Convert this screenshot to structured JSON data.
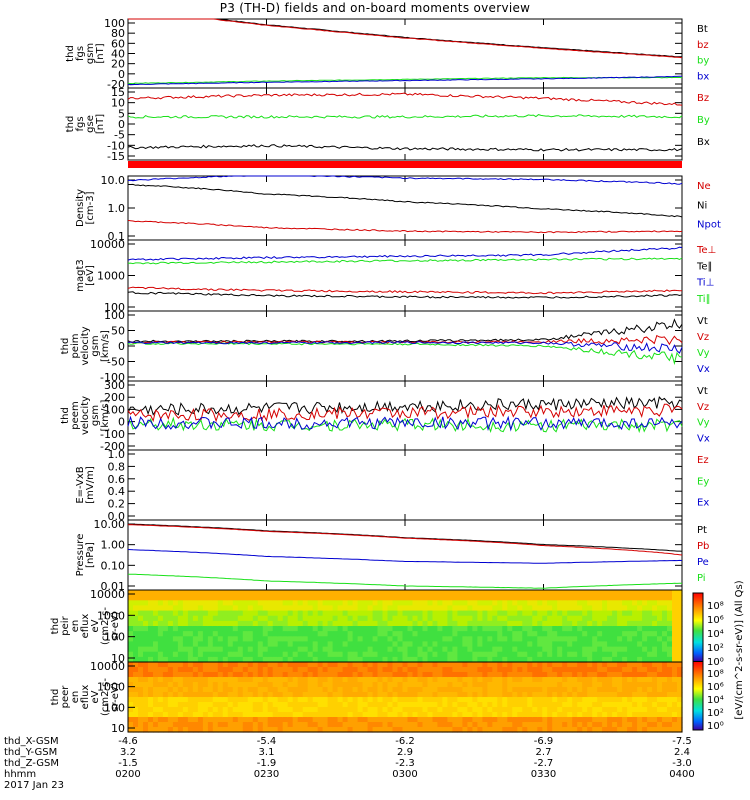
{
  "title": "P3 (TH-D) fields and on-board moments overview",
  "colors": {
    "black": "#000000",
    "red": "#d40000",
    "green": "#19e019",
    "blue": "#0000d0"
  },
  "chart_data": [
    {
      "type": "line",
      "panel": "fgs_gsm",
      "ylabel": [
        "thd",
        "fgs",
        "gsm",
        "[nT]"
      ],
      "yticks": [
        "100",
        "80",
        "60",
        "40",
        "20",
        "0",
        "-20"
      ],
      "ylim": [
        -20,
        100
      ],
      "x": [
        "0200",
        "0230",
        "0300",
        "0330",
        "0400"
      ],
      "series": [
        {
          "name": "Bt",
          "color": "black",
          "values": [
            118,
            90,
            68,
            50,
            34
          ]
        },
        {
          "name": "bz",
          "color": "red",
          "values": [
            117,
            89,
            67,
            49,
            33
          ]
        },
        {
          "name": "by",
          "color": "green",
          "values": [
            -12,
            -8,
            -5,
            -2,
            -2
          ]
        },
        {
          "name": "bx",
          "color": "blue",
          "values": [
            -14,
            -10,
            -7,
            -4,
            0
          ]
        }
      ]
    },
    {
      "type": "line",
      "panel": "fgs_gse",
      "ylabel": [
        "thd",
        "fgs",
        "gse",
        "[nT]"
      ],
      "yticks": [
        "15",
        "10",
        "5",
        "0",
        "-5",
        "-10",
        "-15"
      ],
      "ylim": [
        -20,
        15
      ],
      "series": [
        {
          "name": "Bz",
          "color": "red",
          "values": [
            10,
            11.5,
            12,
            10,
            7
          ]
        },
        {
          "name": "By",
          "color": "green",
          "values": [
            1,
            1,
            1,
            1.5,
            1
          ]
        },
        {
          "name": "Bx",
          "color": "black",
          "values": [
            -14,
            -13,
            -14.5,
            -15,
            -15
          ]
        }
      ]
    },
    {
      "type": "line",
      "panel": "density",
      "ylabel": [
        "Density",
        "[cm-3]"
      ],
      "log": true,
      "yticks": [
        "10.0",
        "1.0",
        "0.1"
      ],
      "ylim": [
        0.1,
        30
      ],
      "series": [
        {
          "name": "Ne",
          "color": "red",
          "values": [
            0.55,
            0.3,
            0.22,
            0.2,
            0.22
          ]
        },
        {
          "name": "Ni",
          "color": "black",
          "values": [
            14,
            6,
            3,
            1.6,
            0.8
          ]
        },
        {
          "name": "Npot",
          "color": "blue",
          "values": [
            20,
            33,
            25,
            22,
            15
          ]
        }
      ]
    },
    {
      "type": "line",
      "panel": "temperature",
      "ylabel": [
        "magt3",
        "[eV]"
      ],
      "log": true,
      "yticks": [
        "10000",
        "1000",
        "100"
      ],
      "ylim": [
        100,
        10000
      ],
      "series": [
        {
          "name": "Te⊥",
          "color": "red",
          "values": [
            450,
            380,
            350,
            320,
            380
          ]
        },
        {
          "name": "Te∥",
          "color": "black",
          "values": [
            330,
            270,
            250,
            240,
            280
          ]
        },
        {
          "name": "Ti⊥",
          "color": "blue",
          "values": [
            2800,
            3200,
            3500,
            3800,
            6000
          ]
        },
        {
          "name": "Ti∥",
          "color": "green",
          "values": [
            2200,
            2400,
            2600,
            2800,
            3000
          ]
        }
      ]
    },
    {
      "type": "line",
      "panel": "peim_velocity",
      "ylabel": [
        "thd",
        "peim",
        "velocity",
        "gsm",
        "[km/s]"
      ],
      "yticks": [
        "100",
        "50",
        "0",
        "-50",
        "-100"
      ],
      "ylim": [
        -120,
        100
      ],
      "series": [
        {
          "name": "Vt",
          "color": "black",
          "values": [
            5,
            5,
            6,
            10,
            60
          ]
        },
        {
          "name": "Vz",
          "color": "red",
          "values": [
            2,
            3,
            2,
            4,
            10
          ]
        },
        {
          "name": "Vy",
          "color": "green",
          "values": [
            -2,
            -3,
            -4,
            -10,
            -50
          ]
        },
        {
          "name": "Vx",
          "color": "blue",
          "values": [
            0,
            0,
            1,
            0,
            -20
          ]
        }
      ]
    },
    {
      "type": "line",
      "panel": "peem_velocity",
      "ylabel": [
        "thd",
        "peem",
        "velocity",
        "gsm",
        "[km/s]"
      ],
      "yticks": [
        "300",
        "200",
        "100",
        "0",
        "-100",
        "-200"
      ],
      "ylim": [
        -200,
        300
      ],
      "series": [
        {
          "name": "Vt",
          "color": "black",
          "values": [
            90,
            100,
            120,
            130,
            140
          ]
        },
        {
          "name": "Vz",
          "color": "red",
          "values": [
            50,
            60,
            70,
            80,
            90
          ]
        },
        {
          "name": "Vy",
          "color": "green",
          "values": [
            -10,
            -20,
            -15,
            -25,
            -20
          ]
        },
        {
          "name": "Vx",
          "color": "blue",
          "values": [
            0,
            -10,
            0,
            -10,
            0
          ]
        }
      ]
    },
    {
      "type": "line",
      "panel": "efield",
      "ylabel": [
        "E=-VxB",
        "[mV/m]"
      ],
      "yticks": [
        "1.0",
        "0.8",
        "0.6",
        "0.4",
        "0.2",
        "0.0"
      ],
      "ylim": [
        0,
        1
      ],
      "series": [
        {
          "name": "Ez",
          "color": "red",
          "values": []
        },
        {
          "name": "Ey",
          "color": "green",
          "values": []
        },
        {
          "name": "Ex",
          "color": "blue",
          "values": []
        }
      ]
    },
    {
      "type": "line",
      "panel": "pressure",
      "ylabel": [
        "Pressure",
        "[nPa]"
      ],
      "log": true,
      "yticks": [
        "10.00",
        "1.00",
        "0.10",
        "0.01"
      ],
      "ylim": [
        0.01,
        12
      ],
      "series": [
        {
          "name": "Pt",
          "color": "black",
          "values": [
            8,
            4,
            2,
            1,
            0.5
          ]
        },
        {
          "name": "Pb",
          "color": "red",
          "values": [
            7.5,
            3.8,
            1.9,
            0.9,
            0.35
          ]
        },
        {
          "name": "Pe",
          "color": "blue",
          "values": [
            0.6,
            0.3,
            0.18,
            0.15,
            0.2
          ]
        },
        {
          "name": "Pi",
          "color": "green",
          "values": [
            0.05,
            0.025,
            0.015,
            0.012,
            0.02
          ]
        }
      ]
    },
    {
      "type": "heatmap",
      "panel": "peir_en_eflux",
      "ylabel": [
        "thd",
        "peir",
        "en",
        "eflux",
        "eV",
        "(cm2-s-",
        "sr-eV)"
      ],
      "yticks": [
        "10000",
        "1000",
        "100",
        "10"
      ]
    },
    {
      "type": "heatmap",
      "panel": "peer_en_eflux",
      "ylabel": [
        "thd",
        "peer",
        "en",
        "eflux",
        "eV",
        "(cm2-s-",
        "sr-eV)"
      ],
      "yticks": [
        "10000",
        "1000",
        "100",
        "10"
      ]
    }
  ],
  "colorbar": {
    "label": "[eV/(cm^2-s-sr-eV)] (All Qs)",
    "ticks_top": [
      "10⁸",
      "10⁶",
      "10⁴",
      "10²",
      "10⁰"
    ],
    "ticks_bottom": [
      "10⁸",
      "10⁶",
      "10⁴",
      "10²",
      "10⁰"
    ]
  },
  "footer": {
    "labels": [
      "thd_X-GSM",
      "thd_Y-GSM",
      "thd_Z-GSM",
      "hhmm",
      "2017 Jan 23"
    ],
    "columns": [
      [
        "-4.6",
        "3.2",
        "-1.5",
        "0200"
      ],
      [
        "-5.4",
        "3.1",
        "-1.9",
        "0230"
      ],
      [
        "-6.2",
        "2.9",
        "-2.3",
        "0300"
      ],
      [
        "-6.9",
        "2.7",
        "-2.7",
        "0330"
      ],
      [
        "-7.5",
        "2.4",
        "-3.0",
        "0400"
      ]
    ]
  }
}
